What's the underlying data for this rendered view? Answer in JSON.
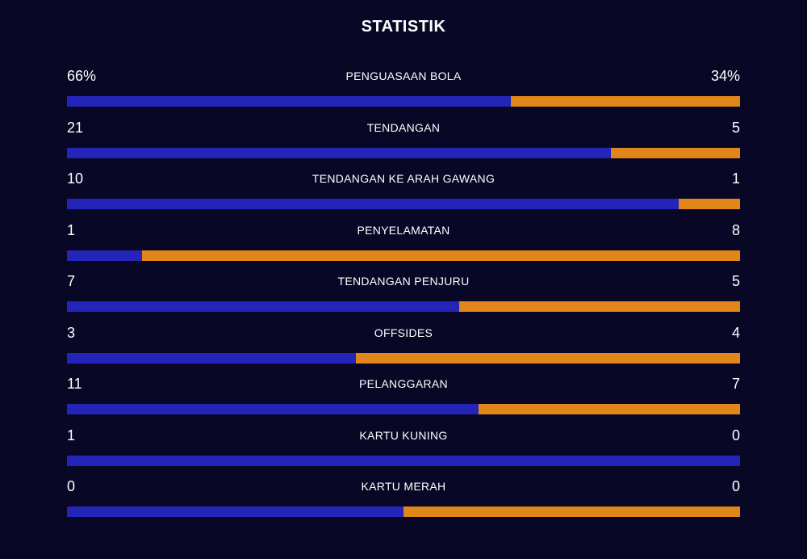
{
  "title": "STATISTIK",
  "colors": {
    "background": "#080826",
    "home": "#2424b8",
    "away": "#e0861a",
    "text": "#ffffff"
  },
  "stats": [
    {
      "label": "PENGUASAAN BOLA",
      "home": "66%",
      "away": "34%",
      "home_share": 0.66
    },
    {
      "label": "TENDANGAN",
      "home": "21",
      "away": "5",
      "home_share": 0.808
    },
    {
      "label": "TENDANGAN KE ARAH GAWANG",
      "home": "10",
      "away": "1",
      "home_share": 0.909
    },
    {
      "label": "PENYELAMATAN",
      "home": "1",
      "away": "8",
      "home_share": 0.111
    },
    {
      "label": "TENDANGAN PENJURU",
      "home": "7",
      "away": "5",
      "home_share": 0.583
    },
    {
      "label": "OFFSIDES",
      "home": "3",
      "away": "4",
      "home_share": 0.429
    },
    {
      "label": "PELANGGARAN",
      "home": "11",
      "away": "7",
      "home_share": 0.611
    },
    {
      "label": "KARTU KUNING",
      "home": "1",
      "away": "0",
      "home_share": 1.0
    },
    {
      "label": "KARTU MERAH",
      "home": "0",
      "away": "0",
      "home_share": 0.5
    }
  ]
}
